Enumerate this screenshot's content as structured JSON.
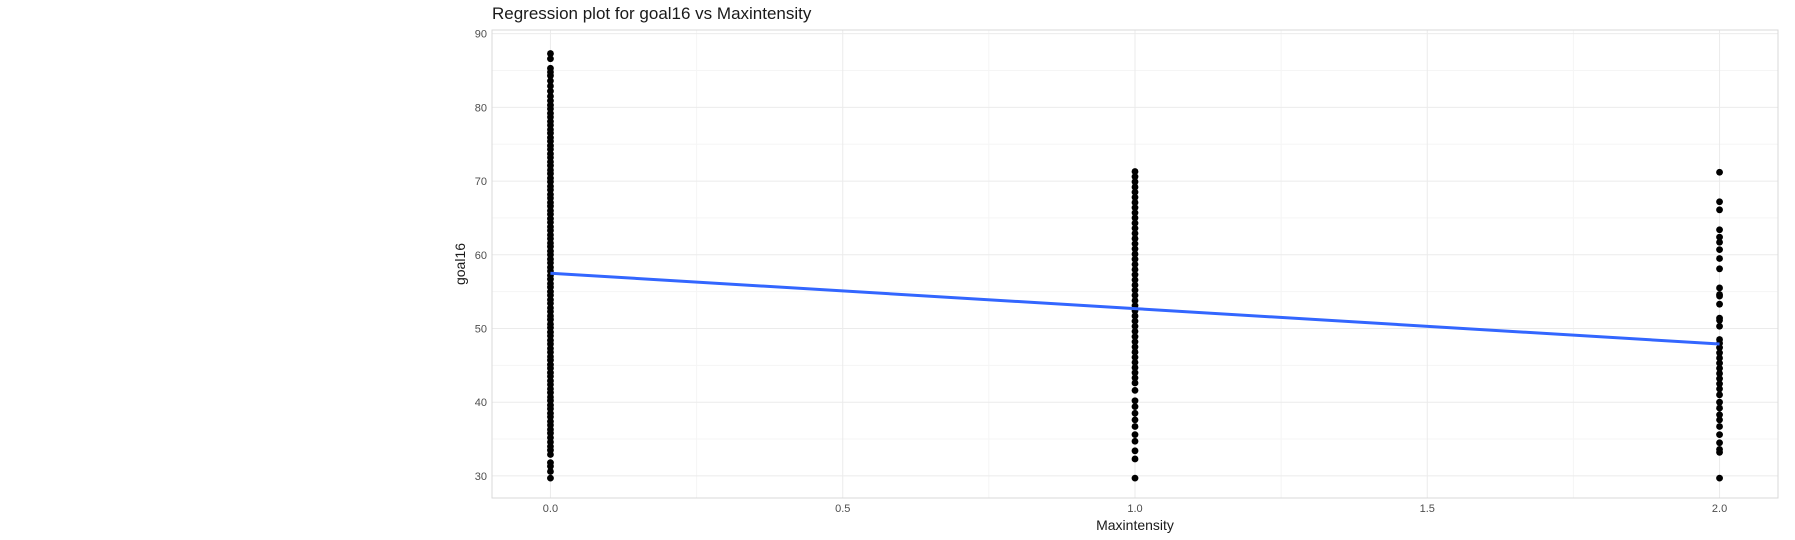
{
  "chart_data": {
    "type": "scatter",
    "title": "Regression plot for goal16 vs Maxintensity",
    "xlabel": "Maxintensity",
    "ylabel": "goal16",
    "xlim": [
      -0.1,
      2.1
    ],
    "ylim": [
      27,
      90.5
    ],
    "x_ticks": [
      "0.0",
      "0.5",
      "1.0",
      "1.5",
      "2.0"
    ],
    "x_tick_values": [
      0,
      0.5,
      1,
      1.5,
      2
    ],
    "y_ticks": [
      "30",
      "40",
      "50",
      "60",
      "70",
      "80",
      "90"
    ],
    "y_tick_values": [
      30,
      40,
      50,
      60,
      70,
      80,
      90
    ],
    "grid": true,
    "series": [
      {
        "x": 0,
        "values": [
          29.7,
          30.6,
          31.3,
          31.8,
          32.9,
          33.5,
          34.0,
          34.6,
          35.2,
          35.8,
          36.3,
          36.9,
          37.4,
          38.0,
          38.5,
          39.1,
          39.6,
          40.2,
          40.7,
          41.3,
          41.8,
          42.4,
          42.9,
          43.5,
          44.0,
          44.6,
          45.1,
          45.7,
          46.2,
          46.8,
          47.3,
          47.9,
          48.4,
          49.0,
          49.5,
          50.1,
          50.6,
          51.2,
          51.7,
          52.3,
          52.8,
          53.4,
          53.9,
          54.5,
          55.0,
          55.6,
          56.1,
          56.7,
          57.2,
          57.8,
          58.3,
          58.9,
          59.4,
          60.0,
          60.5,
          61.1,
          61.6,
          62.2,
          62.7,
          63.3,
          63.8,
          64.4,
          64.9,
          65.5,
          66.0,
          66.6,
          67.1,
          67.7,
          68.2,
          68.8,
          69.3,
          69.9,
          70.4,
          71.0,
          71.5,
          72.1,
          72.6,
          73.2,
          73.7,
          74.3,
          74.8,
          75.4,
          75.9,
          76.5,
          77.0,
          77.6,
          78.1,
          78.7,
          79.2,
          79.8,
          80.3,
          80.9,
          81.5,
          82.2,
          82.9,
          83.6,
          84.3,
          84.8,
          85.3,
          86.6,
          87.3
        ],
        "color": "#000000"
      },
      {
        "x": 1,
        "values": [
          29.7,
          32.3,
          33.4,
          34.7,
          35.6,
          36.7,
          37.6,
          38.5,
          39.4,
          40.2,
          41.6,
          42.6,
          43.3,
          44.0,
          44.7,
          45.4,
          46.1,
          46.8,
          47.5,
          48.2,
          48.9,
          49.6,
          50.3,
          51.0,
          51.7,
          52.4,
          53.1,
          53.8,
          54.5,
          55.2,
          55.9,
          56.6,
          57.3,
          58.0,
          58.7,
          59.4,
          60.1,
          60.8,
          61.5,
          62.2,
          62.9,
          63.6,
          64.3,
          65.0,
          65.7,
          66.4,
          67.1,
          67.8,
          68.5,
          69.2,
          69.9,
          70.6,
          71.3
        ],
        "color": "#000000"
      },
      {
        "x": 2,
        "values": [
          29.7,
          33.2,
          33.6,
          34.5,
          35.6,
          36.7,
          37.6,
          38.3,
          39.2,
          40.0,
          41.0,
          41.8,
          42.5,
          43.2,
          43.9,
          44.6,
          45.3,
          46.0,
          46.7,
          47.4,
          48.0,
          48.5,
          50.3,
          51.1,
          51.4,
          53.3,
          54.4,
          54.6,
          55.5,
          58.1,
          59.5,
          60.7,
          61.7,
          62.4,
          63.4,
          66.1,
          67.2,
          71.2
        ],
        "color": "#000000"
      }
    ],
    "regression_line": {
      "x": [
        0,
        1,
        2
      ],
      "y": [
        57.5,
        52.7,
        47.9
      ],
      "color": "#3366ff"
    },
    "colors": {
      "background": "#ffffff",
      "grid_major": "#ebebeb",
      "grid_minor": "#f5f5f5",
      "panel_border": "#d9d9d9",
      "points": "#000000",
      "line": "#3366ff"
    }
  }
}
